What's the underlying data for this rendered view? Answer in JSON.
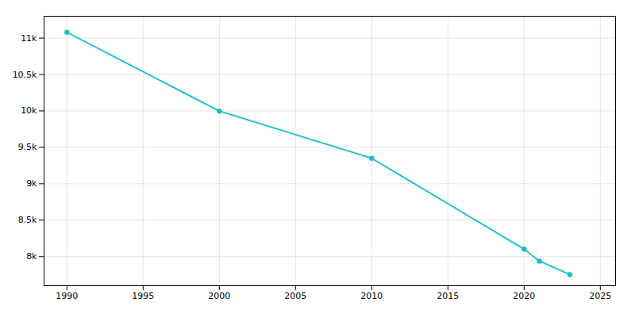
{
  "chart_data": {
    "type": "line",
    "x": [
      1990,
      2000,
      2010,
      2020,
      2021,
      2023
    ],
    "values": [
      11080,
      9998,
      9350,
      8102,
      7938,
      7753
    ],
    "color": "#17becf",
    "marker": "circle",
    "xlim": [
      1988.5,
      2026
    ],
    "ylim": [
      7600,
      11300
    ],
    "xticks": [
      1990,
      1995,
      2000,
      2005,
      2010,
      2015,
      2020,
      2025
    ],
    "yticks": [
      {
        "value": 8000,
        "label": "8k"
      },
      {
        "value": 8500,
        "label": "8.5k"
      },
      {
        "value": 9000,
        "label": "9k"
      },
      {
        "value": 9500,
        "label": "9.5k"
      },
      {
        "value": 10000,
        "label": "10k"
      },
      {
        "value": 10500,
        "label": "10.5k"
      },
      {
        "value": 11000,
        "label": "11k"
      }
    ],
    "grid": true
  }
}
